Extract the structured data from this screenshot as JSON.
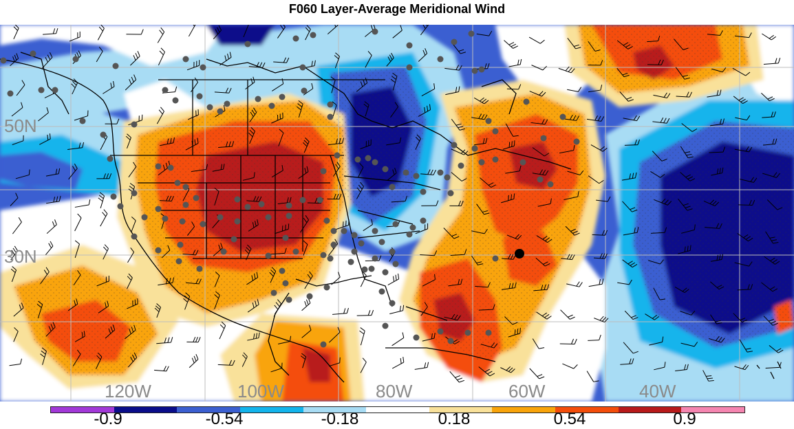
{
  "title": "F060 Layer-Average Meridional Wind",
  "lon_labels": [
    "120W",
    "100W",
    "80W",
    "60W",
    "40W"
  ],
  "lat_labels": [
    "50N",
    "30N"
  ],
  "colorbar": {
    "tick_labels": [
      "-0.9",
      "-0.54",
      "-0.18",
      "0.18",
      "0.54",
      "0.9"
    ],
    "colors": [
      "#a238d8",
      "#0a0d8a",
      "#3b5fd1",
      "#12b4ec",
      "#a8dcf4",
      "#ffffff",
      "#f9e19a",
      "#f9a40a",
      "#f44d0a",
      "#b81a1a",
      "#f585b0"
    ]
  },
  "icons": {
    "wind_barb": "wind-barb-icon",
    "station": "station-dot-icon",
    "highlight": "highlighted-station-icon"
  }
}
